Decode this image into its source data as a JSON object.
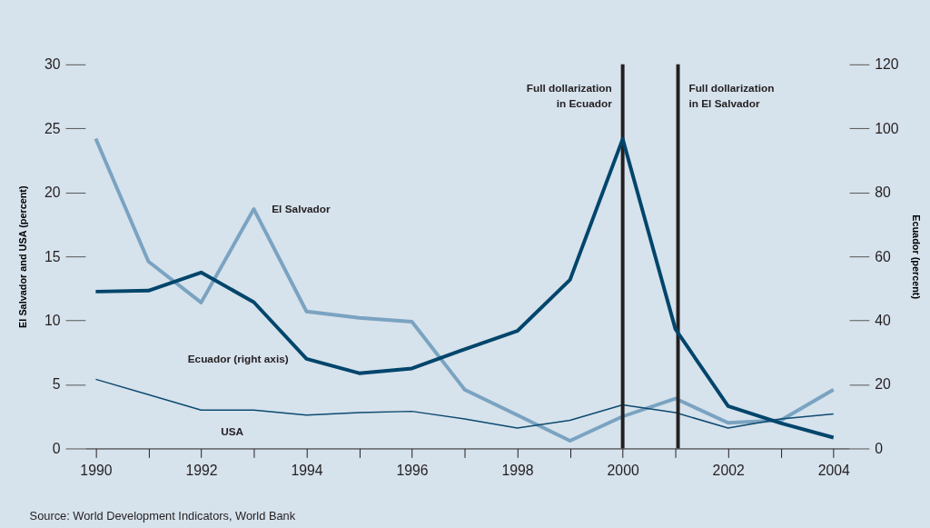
{
  "chart_data": {
    "type": "line",
    "x": [
      1990,
      1991,
      1992,
      1993,
      1994,
      1995,
      1996,
      1997,
      1998,
      1999,
      2000,
      2001,
      2002,
      2003,
      2004
    ],
    "series": [
      {
        "name": "El Salvador",
        "color": "#7aa3c1",
        "values": [
          24.2,
          14.6,
          11.4,
          18.7,
          10.7,
          10.2,
          9.9,
          4.6,
          2.6,
          0.6,
          2.5,
          3.9,
          2.0,
          2.2,
          4.6
        ]
      },
      {
        "name": "Ecuador (right axis)",
        "color": "#00456b",
        "axis": "y2",
        "values": [
          49,
          49.3,
          55,
          45.7,
          28,
          23.5,
          25,
          31,
          36.7,
          52.7,
          96.7,
          37.3,
          13.2,
          7.9,
          3.4
        ]
      },
      {
        "name": "USA",
        "color": "#0d4a70",
        "values": [
          5.4,
          4.2,
          3.0,
          3.0,
          2.6,
          2.8,
          2.9,
          2.3,
          1.6,
          2.2,
          3.4,
          2.8,
          1.6,
          2.3,
          2.7
        ]
      }
    ],
    "xlim": [
      1989.8,
      2004.3
    ],
    "xticks": [
      1990,
      {
        "value": 1991,
        "label": null
      },
      1992,
      {
        "value": 1993,
        "label": null
      },
      1994,
      {
        "value": 1995,
        "label": null
      },
      1996,
      {
        "value": 1997,
        "label": null
      },
      1998,
      {
        "value": 1999,
        "label": null
      },
      2000,
      {
        "value": 2001,
        "label": null
      },
      2002,
      {
        "value": 2003,
        "label": null
      },
      2004
    ],
    "ylim": [
      0,
      30
    ],
    "yticks": [
      0,
      5,
      10,
      15,
      20,
      25,
      30
    ],
    "y2lim": [
      0,
      120
    ],
    "y2ticks": [
      0,
      20,
      40,
      60,
      80,
      100,
      120
    ],
    "ylabel": "El Salvador and USA (percent)",
    "y2label": "Ecuador (percent)",
    "ref_lines": [
      {
        "axis": "x",
        "value": 2000,
        "label": "Full dollarization\nin Ecuador",
        "color": "#231f20"
      },
      {
        "axis": "x",
        "value": 2001.05,
        "label": "Full dollarization\nin El Salvador",
        "color": "#231f20"
      }
    ],
    "annotations": [
      "Source: World Development Indicators, World Bank"
    ],
    "grid": false,
    "legend": false,
    "marker": "none",
    "line_style": "solid"
  }
}
